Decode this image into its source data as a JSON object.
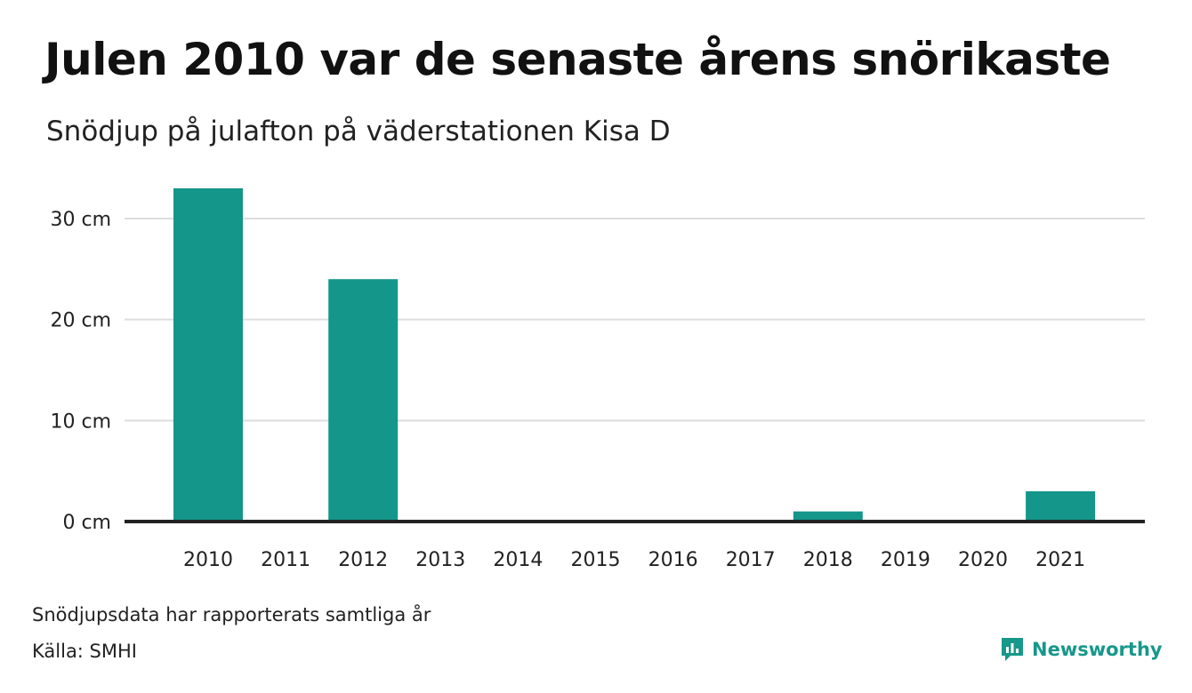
{
  "title": "Julen 2010 var de senaste årens snörikaste",
  "subtitle": "Snödjup på julafton på väderstationen Kisa D",
  "note": "Snödjupsdata har rapporterats samtliga år",
  "source": "Källa: SMHI",
  "brand": {
    "name": "Newsworthy",
    "icon": "bar-chart-speech-bubble-icon"
  },
  "colors": {
    "bar": "#14968a",
    "grid": "#dddddd",
    "axis": "#222222",
    "brand": "#16988a"
  },
  "chart_data": {
    "type": "bar",
    "categories": [
      "2010",
      "2011",
      "2012",
      "2013",
      "2014",
      "2015",
      "2016",
      "2017",
      "2018",
      "2019",
      "2020",
      "2021"
    ],
    "values": [
      33,
      0,
      24,
      0,
      0,
      0,
      0,
      0,
      1,
      0,
      0,
      3
    ],
    "yticks": [
      0,
      10,
      20,
      30
    ],
    "ytick_labels": [
      "0 cm",
      "10 cm",
      "20 cm",
      "30 cm"
    ],
    "ylim": [
      0,
      30
    ],
    "grid": true
  }
}
